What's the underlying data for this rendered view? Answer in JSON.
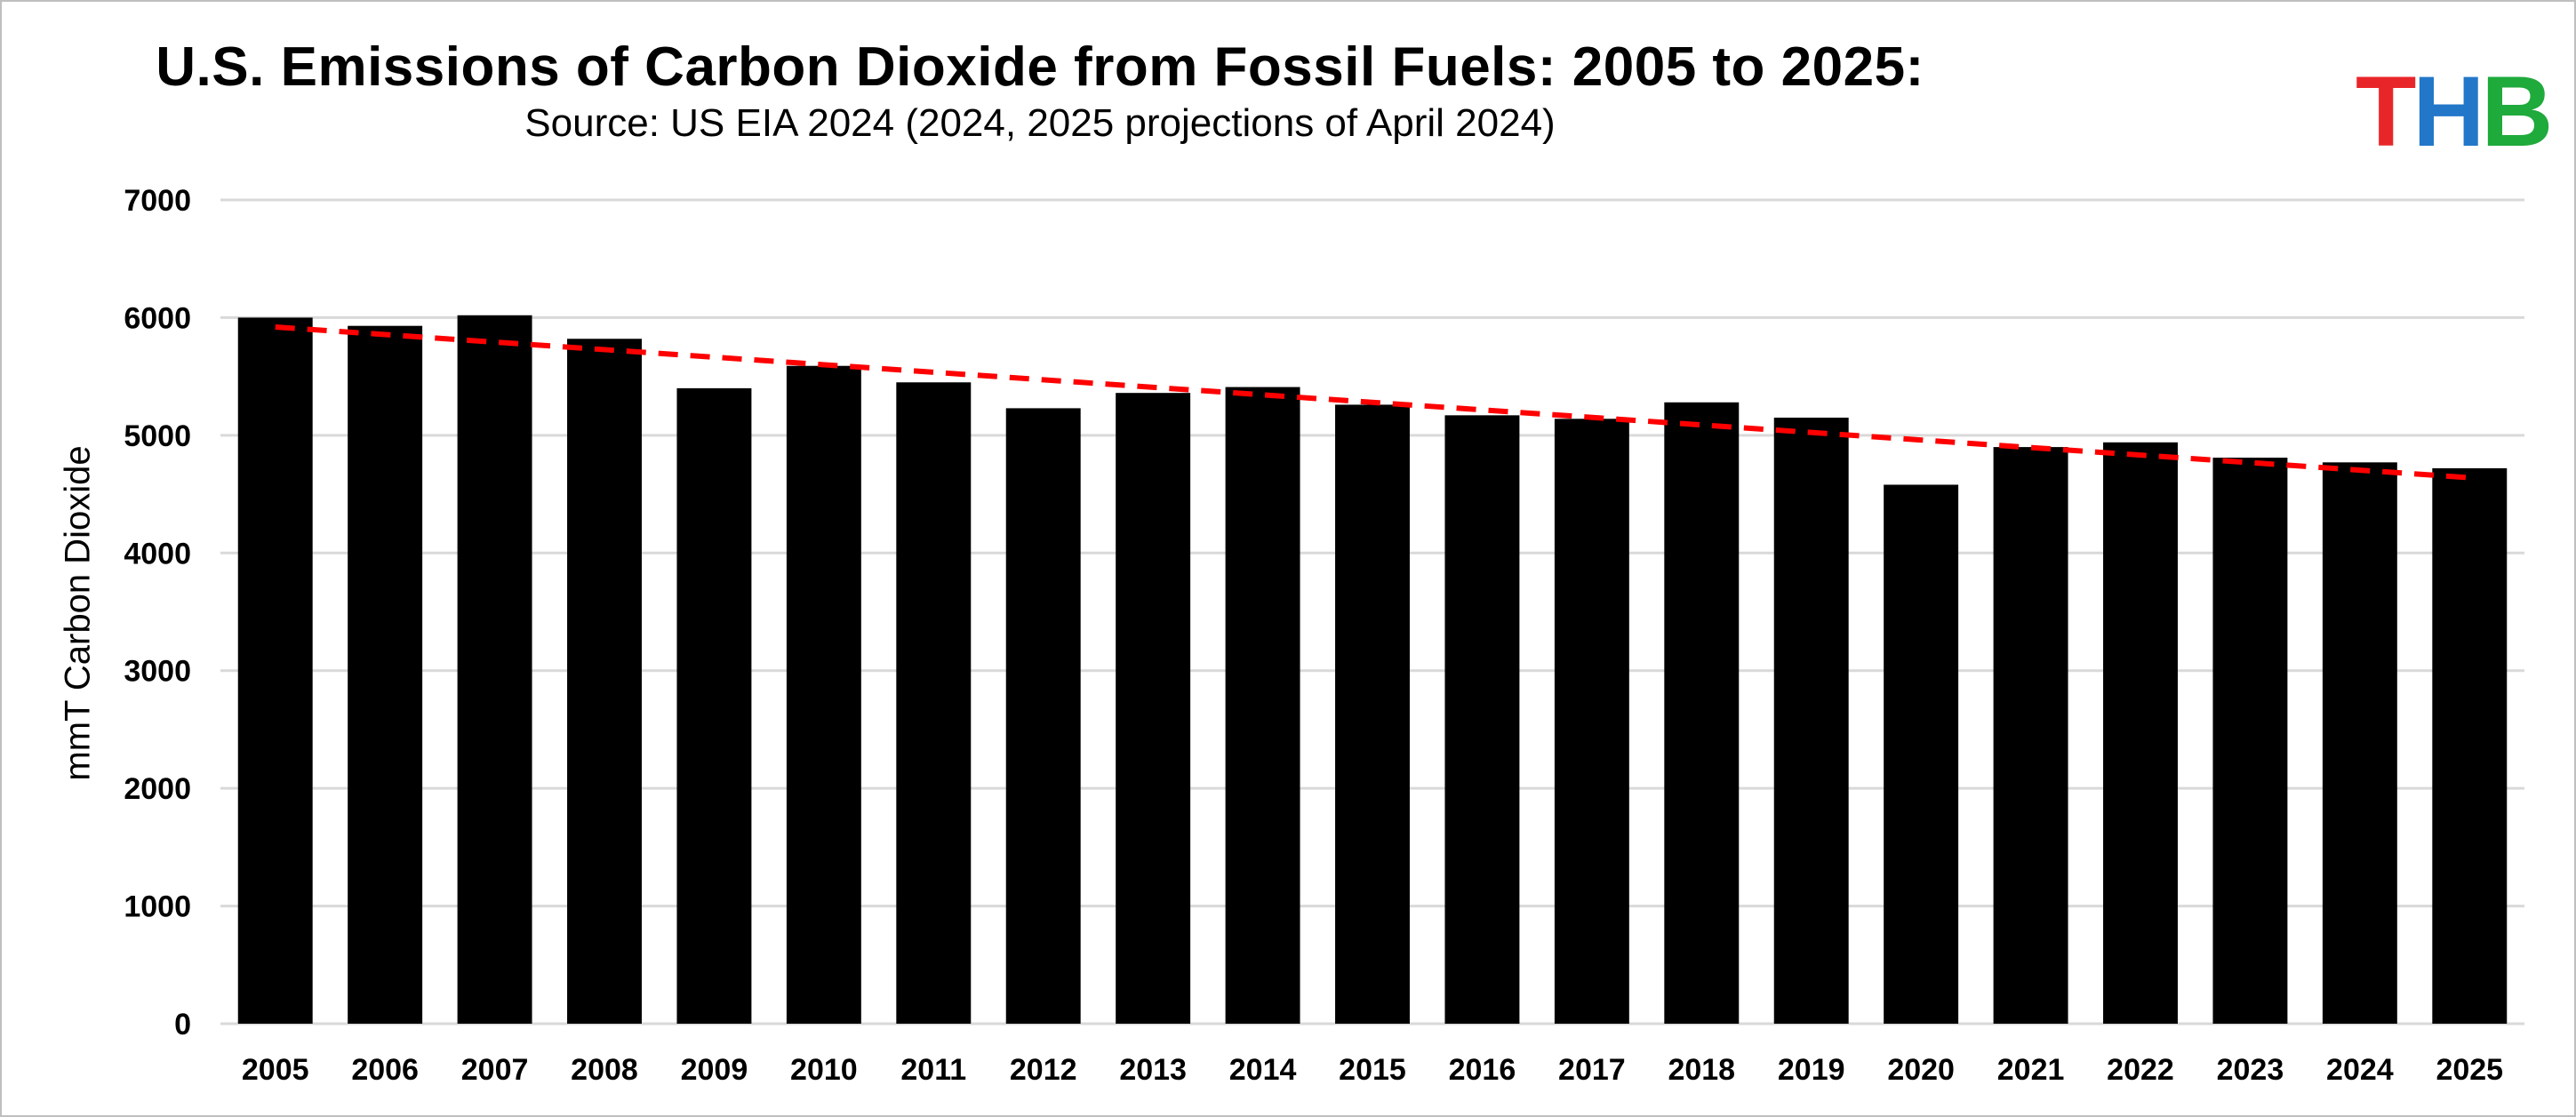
{
  "chart_data": {
    "type": "bar",
    "title": "U.S. Emissions of Carbon Dioxide from Fossil Fuels: 2005 to 2025:",
    "subtitle": "Source: US EIA 2024 (2024, 2025 projections of April 2024)",
    "xlabel": "",
    "ylabel": "mmT Carbon Dioxide",
    "ylim": [
      0,
      7000
    ],
    "yticks": [
      0,
      1000,
      2000,
      3000,
      4000,
      5000,
      6000,
      7000
    ],
    "grid": true,
    "categories": [
      "2005",
      "2006",
      "2007",
      "2008",
      "2009",
      "2010",
      "2011",
      "2012",
      "2013",
      "2014",
      "2015",
      "2016",
      "2017",
      "2018",
      "2019",
      "2020",
      "2021",
      "2022",
      "2023",
      "2024",
      "2025"
    ],
    "values": [
      6000,
      5930,
      6020,
      5820,
      5400,
      5590,
      5450,
      5230,
      5360,
      5410,
      5260,
      5170,
      5140,
      5280,
      5150,
      4580,
      4900,
      4940,
      4810,
      4770,
      4720
    ],
    "bar_color": "#000000",
    "trendline": {
      "style": "dashed",
      "color": "#ff0000",
      "start_value": 5920,
      "end_value": 4640
    }
  },
  "logo": {
    "letters": [
      "T",
      "H",
      "B"
    ],
    "colors": [
      "#e8262a",
      "#2277c9",
      "#1faa3c"
    ]
  }
}
